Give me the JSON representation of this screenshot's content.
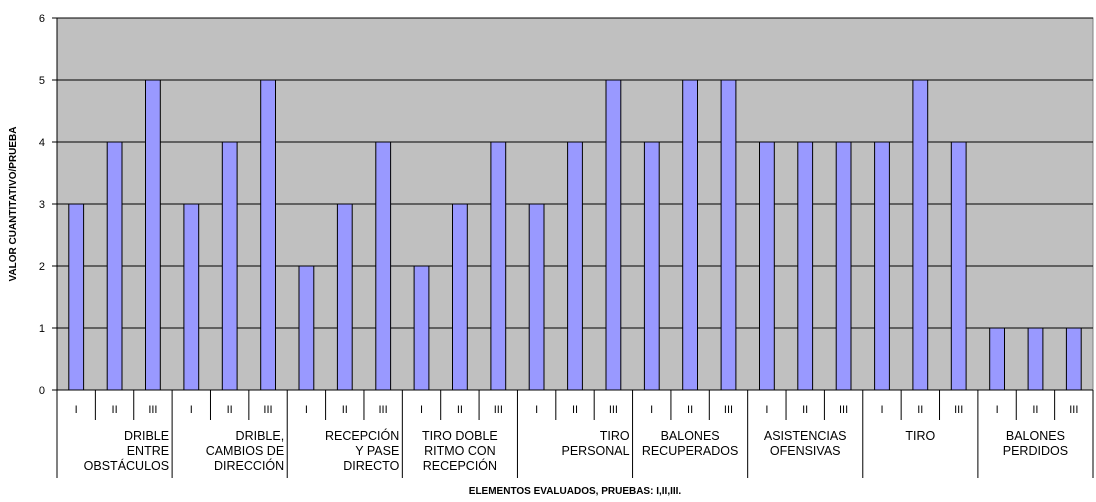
{
  "chart_data": {
    "type": "bar",
    "xlabel": "ELEMENTOS EVALUADOS, PRUEBAS: I,II,III.",
    "ylabel": "VALOR CUANTITATIVO/PRUEBA",
    "ylim": [
      0,
      6
    ],
    "yticks": [
      "0",
      "1",
      "2",
      "3",
      "4",
      "5",
      "6"
    ],
    "grid": true,
    "colors": {
      "bar": "#9999ff",
      "plot_bg": "#c0c0c0",
      "axis": "#000000"
    },
    "groups": [
      {
        "label": [
          "DRIBLE",
          "ENTRE",
          "OBSTÁCULOS"
        ],
        "align": "right",
        "sublabels": [
          "I",
          "II",
          "III"
        ],
        "values": [
          3,
          4,
          5
        ]
      },
      {
        "label": [
          "DRIBLE,",
          "CAMBIOS DE",
          "DIRECCIÓN"
        ],
        "align": "right",
        "sublabels": [
          "I",
          "II",
          "III"
        ],
        "values": [
          3,
          4,
          5
        ]
      },
      {
        "label": [
          "RECEPCIÓN",
          "Y PASE",
          "DIRECTO"
        ],
        "align": "right",
        "sublabels": [
          "I",
          "II",
          "III"
        ],
        "values": [
          2,
          3,
          4
        ]
      },
      {
        "label": [
          "TIRO DOBLE",
          "RITMO CON",
          "RECEPCIÓN"
        ],
        "align": "center",
        "sublabels": [
          "I",
          "II",
          "III"
        ],
        "values": [
          2,
          3,
          4
        ]
      },
      {
        "label": [
          "TIRO",
          "PERSONAL"
        ],
        "align": "right",
        "sublabels": [
          "I",
          "II",
          "III"
        ],
        "values": [
          3,
          4,
          5
        ]
      },
      {
        "label": [
          "BALONES",
          "RECUPERADOS"
        ],
        "align": "center",
        "sublabels": [
          "I",
          "II",
          "III"
        ],
        "values": [
          4,
          5,
          5
        ]
      },
      {
        "label": [
          "ASISTENCIAS",
          "OFENSIVAS"
        ],
        "align": "center",
        "sublabels": [
          "I",
          "II",
          "III"
        ],
        "values": [
          4,
          4,
          4
        ]
      },
      {
        "label": [
          "TIRO"
        ],
        "align": "center",
        "sublabels": [
          "I",
          "II",
          "III"
        ],
        "values": [
          4,
          5,
          4
        ]
      },
      {
        "label": [
          "BALONES",
          "PERDIDOS"
        ],
        "align": "center",
        "sublabels": [
          "I",
          "II",
          "III"
        ],
        "values": [
          1,
          1,
          1
        ]
      }
    ]
  }
}
